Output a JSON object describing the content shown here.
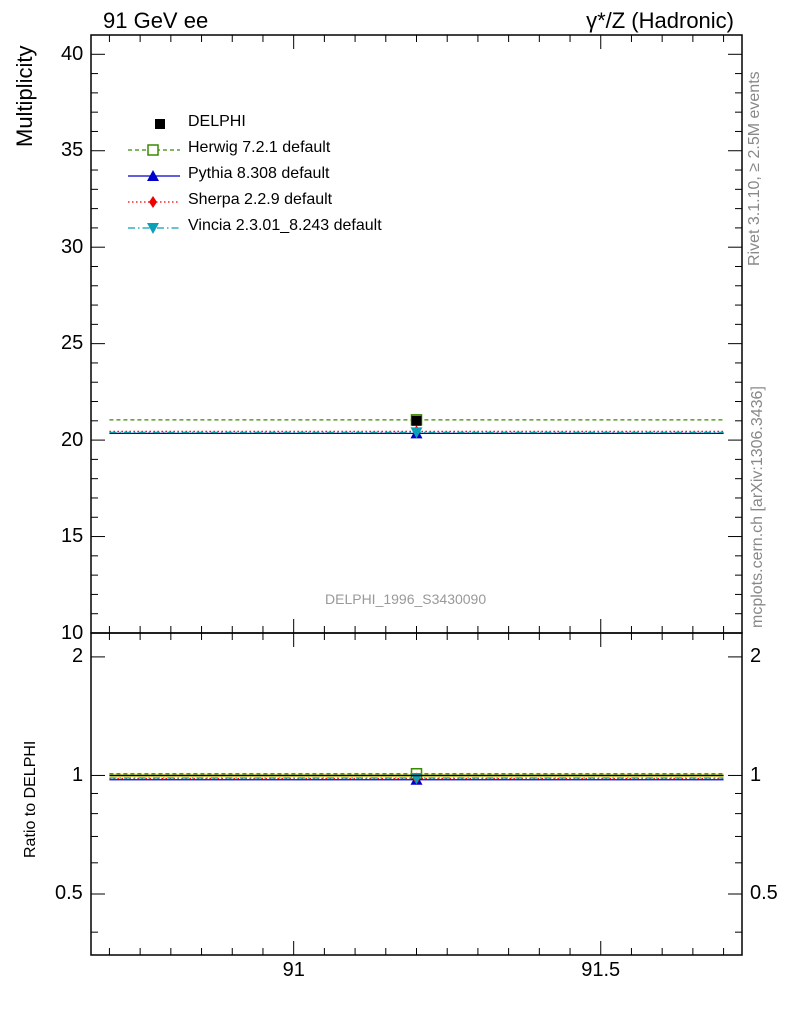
{
  "header": {
    "left": "91 GeV ee",
    "right": "γ*/Z (Hadronic)"
  },
  "side_labels": {
    "rivet": "Rivet 3.1.10, ≥ 2.5M events",
    "mcplots": "mcplots.cern.ch [arXiv:1306.3436]"
  },
  "watermark": "DELPHI_1996_S3430090",
  "legend": [
    {
      "name": "DELPHI",
      "color": "#000000",
      "marker": "square-filled",
      "line": "none"
    },
    {
      "name": "Herwig 7.2.1 default",
      "color": "#3a8a00",
      "marker": "square-open",
      "line": "dashed"
    },
    {
      "name": "Pythia 8.308 default",
      "color": "#0000cc",
      "marker": "triangle-up",
      "line": "solid"
    },
    {
      "name": "Sherpa 2.2.9 default",
      "color": "#ee0000",
      "marker": "diamond",
      "line": "dotted"
    },
    {
      "name": "Vincia 2.3.01_8.243 default",
      "color": "#0aa0b8",
      "marker": "triangle-down",
      "line": "dashdot"
    }
  ],
  "chart_data": [
    {
      "type": "scatter",
      "panel": "main",
      "ylabel": "Multiplicity",
      "xlim": [
        90.67,
        91.73
      ],
      "ylim": [
        10,
        41
      ],
      "yticks": [
        10,
        15,
        20,
        25,
        30,
        35,
        40
      ],
      "x_range_of_bin": [
        90.7,
        91.7
      ],
      "x": 91.2,
      "series": [
        {
          "name": "DELPHI",
          "y": 21.0
        },
        {
          "name": "Herwig 7.2.1 default",
          "y": 21.05
        },
        {
          "name": "Pythia 8.308 default",
          "y": 20.35
        },
        {
          "name": "Sherpa 2.2.9 default",
          "y": 20.45
        },
        {
          "name": "Vincia 2.3.01_8.243 default",
          "y": 20.4
        }
      ]
    },
    {
      "type": "scatter",
      "panel": "ratio",
      "ylabel": "Ratio to DELPHI",
      "xlabel": "",
      "xlim": [
        90.67,
        91.73
      ],
      "ylim": [
        0.35,
        2.3
      ],
      "yticks": [
        0.5,
        1,
        2
      ],
      "xticks": [
        91,
        91.5
      ],
      "x": 91.2,
      "series": [
        {
          "name": "DELPHI",
          "y": 1.0,
          "band": [
            0.985,
            1.015
          ]
        },
        {
          "name": "Herwig 7.2.1 default",
          "y": 1.01
        },
        {
          "name": "Pythia 8.308 default",
          "y": 0.975
        },
        {
          "name": "Sherpa 2.2.9 default",
          "y": 0.982
        },
        {
          "name": "Vincia 2.3.01_8.243 default",
          "y": 0.985
        }
      ]
    }
  ]
}
